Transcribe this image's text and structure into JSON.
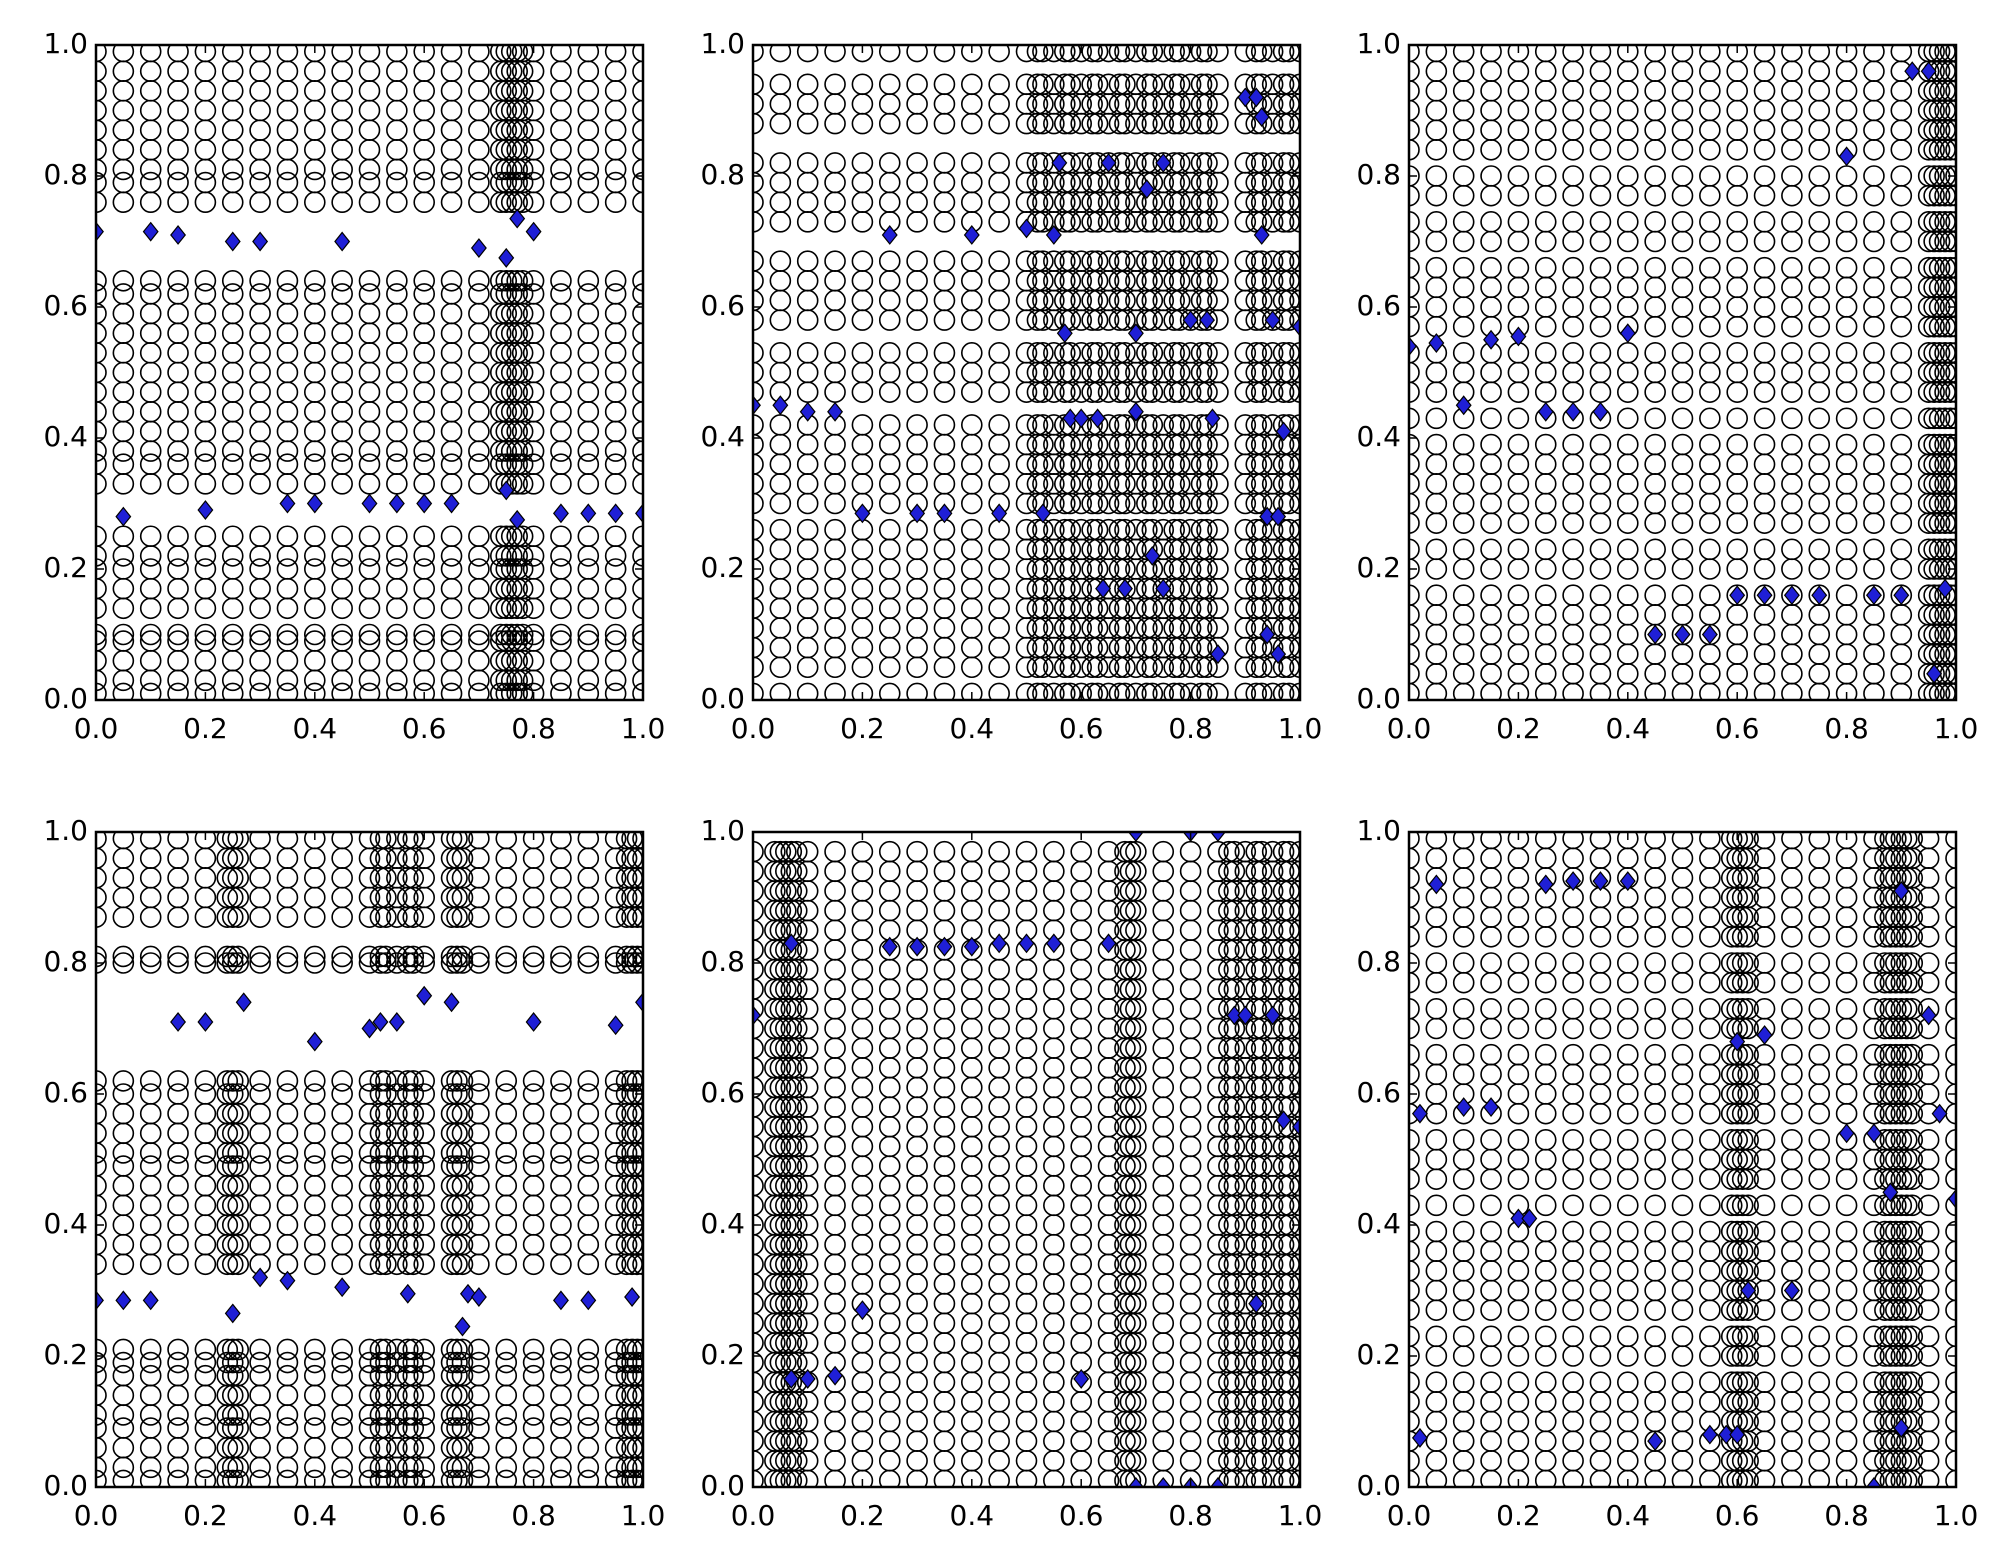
{
  "chart_data": [
    {
      "type": "scatter",
      "xlim": [
        0,
        1
      ],
      "ylim": [
        0,
        1
      ],
      "xticks": [
        {
          "value": 0,
          "label": "0.0"
        },
        0.2,
        0.4,
        0.6,
        0.8,
        {
          "value": 1,
          "label": "1.0"
        }
      ],
      "yticks": [
        {
          "value": 0,
          "label": "0.0"
        },
        0.2,
        0.4,
        0.6,
        0.8,
        {
          "value": 1,
          "label": "1.0"
        }
      ],
      "series": [
        {
          "marker": "circle",
          "color": "none",
          "edgecolor": "#000000",
          "grid_x": [
            0,
            0.05,
            0.1,
            0.15,
            0.2,
            0.25,
            0.3,
            0.35,
            0.4,
            0.45,
            0.5,
            0.55,
            0.6,
            0.65,
            0.7,
            0.75,
            0.8,
            0.85,
            0.9,
            0.95,
            1,
            0.74,
            0.76,
            0.77,
            0.78
          ],
          "grid_y": [
            0.01,
            0.03,
            0.06,
            0.09,
            0.1,
            0.14,
            0.17,
            0.2,
            0.22,
            0.25,
            0.33,
            0.36,
            0.38,
            0.41,
            0.44,
            0.47,
            0.5,
            0.53,
            0.56,
            0.59,
            0.62,
            0.64,
            0.76,
            0.79,
            0.81,
            0.84,
            0.87,
            0.9,
            0.93,
            0.96,
            0.99
          ]
        },
        {
          "marker": "diamond",
          "color": "#1f1fd6",
          "edgecolor": "#000000",
          "x": [
            0,
            0.1,
            0.15,
            0.25,
            0.3,
            0.45,
            0.7,
            0.75,
            0.77,
            0.8,
            0.05,
            0.2,
            0.35,
            0.4,
            0.5,
            0.55,
            0.6,
            0.65,
            0.75,
            0.77,
            0.85,
            0.9,
            0.95,
            1
          ],
          "y": [
            0.715,
            0.715,
            0.71,
            0.7,
            0.7,
            0.7,
            0.69,
            0.675,
            0.735,
            0.715,
            0.28,
            0.29,
            0.3,
            0.3,
            0.3,
            0.3,
            0.3,
            0.3,
            0.32,
            0.275,
            0.285,
            0.285,
            0.285,
            0.285
          ]
        }
      ]
    },
    {
      "type": "scatter",
      "xlim": [
        0,
        1
      ],
      "ylim": [
        0,
        1
      ],
      "xticks": [
        {
          "value": 0,
          "label": "0.0"
        },
        0.2,
        0.4,
        0.6,
        0.8,
        {
          "value": 1,
          "label": "1.0"
        }
      ],
      "yticks": [
        {
          "value": 0,
          "label": "0.0"
        },
        0.2,
        0.4,
        0.6,
        0.8,
        {
          "value": 1,
          "label": "1.0"
        }
      ],
      "series": [
        {
          "marker": "circle",
          "color": "none",
          "edgecolor": "#000000",
          "grid_x": [
            0,
            0.05,
            0.1,
            0.15,
            0.2,
            0.25,
            0.3,
            0.35,
            0.4,
            0.45,
            0.5,
            0.55,
            0.6,
            0.65,
            0.7,
            0.75,
            0.8,
            0.85,
            0.9,
            0.95,
            1,
            0.52,
            0.53,
            0.57,
            0.58,
            0.62,
            0.63,
            0.67,
            0.68,
            0.72,
            0.73,
            0.77,
            0.78,
            0.82,
            0.83,
            0.92,
            0.93,
            0.97,
            0.98
          ],
          "grid_y": [
            0.01,
            0.05,
            0.08,
            0.11,
            0.14,
            0.17,
            0.2,
            0.23,
            0.26,
            0.3,
            0.33,
            0.36,
            0.39,
            0.42,
            0.47,
            0.5,
            0.53,
            0.58,
            0.61,
            0.64,
            0.67,
            0.73,
            0.76,
            0.79,
            0.82,
            0.88,
            0.91,
            0.94,
            0.99
          ]
        },
        {
          "marker": "diamond",
          "color": "#1f1fd6",
          "edgecolor": "#000000",
          "x": [
            0,
            0.05,
            0.1,
            0.15,
            0.2,
            0.25,
            0.3,
            0.35,
            0.4,
            0.45,
            0.5,
            0.53,
            0.55,
            0.56,
            0.57,
            0.58,
            0.6,
            0.63,
            0.64,
            0.65,
            0.68,
            0.7,
            0.7,
            0.72,
            0.73,
            0.75,
            0.75,
            0.8,
            0.83,
            0.84,
            0.85,
            0.9,
            0.92,
            0.93,
            0.93,
            0.95,
            0.97,
            0.94,
            0.96,
            0.94,
            0.96,
            1
          ],
          "y": [
            0.45,
            0.45,
            0.44,
            0.44,
            0.285,
            0.71,
            0.285,
            0.285,
            0.71,
            0.285,
            0.72,
            0.285,
            0.71,
            0.82,
            0.56,
            0.43,
            0.43,
            0.43,
            0.17,
            0.82,
            0.17,
            0.44,
            0.56,
            0.78,
            0.22,
            0.82,
            0.17,
            0.58,
            0.58,
            0.43,
            0.07,
            0.92,
            0.92,
            0.89,
            0.71,
            0.58,
            0.41,
            0.28,
            0.28,
            0.1,
            0.07,
            0.57
          ]
        }
      ]
    },
    {
      "type": "scatter",
      "xlim": [
        0,
        1
      ],
      "ylim": [
        0,
        1
      ],
      "xticks": [
        {
          "value": 0,
          "label": "0.0"
        },
        0.2,
        0.4,
        0.6,
        0.8,
        {
          "value": 1,
          "label": "1.0"
        }
      ],
      "yticks": [
        {
          "value": 0,
          "label": "0.0"
        },
        0.2,
        0.4,
        0.6,
        0.8,
        {
          "value": 1,
          "label": "1.0"
        }
      ],
      "series": [
        {
          "marker": "circle",
          "color": "none",
          "edgecolor": "#000000",
          "grid_x": [
            0,
            0.05,
            0.1,
            0.15,
            0.2,
            0.25,
            0.3,
            0.35,
            0.4,
            0.45,
            0.5,
            0.55,
            0.6,
            0.65,
            0.7,
            0.75,
            0.8,
            0.85,
            0.9,
            0.95,
            1,
            0.96,
            0.97,
            0.98,
            0.99
          ],
          "grid_y": [
            0.01,
            0.04,
            0.07,
            0.1,
            0.13,
            0.16,
            0.2,
            0.23,
            0.27,
            0.3,
            0.33,
            0.36,
            0.39,
            0.43,
            0.47,
            0.5,
            0.53,
            0.57,
            0.6,
            0.63,
            0.66,
            0.7,
            0.73,
            0.77,
            0.8,
            0.84,
            0.87,
            0.9,
            0.93,
            0.96,
            0.99
          ]
        },
        {
          "marker": "diamond",
          "color": "#1f1fd6",
          "edgecolor": "#000000",
          "x": [
            0,
            0.05,
            0.1,
            0.15,
            0.2,
            0.25,
            0.3,
            0.35,
            0.4,
            0.45,
            0.5,
            0.55,
            0.6,
            0.65,
            0.7,
            0.75,
            0.8,
            0.85,
            0.9,
            0.92,
            0.95,
            0.98,
            0.96
          ],
          "y": [
            0.54,
            0.545,
            0.45,
            0.55,
            0.555,
            0.44,
            0.44,
            0.44,
            0.56,
            0.1,
            0.1,
            0.1,
            0.16,
            0.16,
            0.16,
            0.16,
            0.83,
            0.16,
            0.16,
            0.96,
            0.96,
            0.17,
            0.04
          ]
        }
      ]
    },
    {
      "type": "scatter",
      "xlim": [
        0,
        1
      ],
      "ylim": [
        0,
        1
      ],
      "xticks": [
        {
          "value": 0,
          "label": "0.0"
        },
        0.2,
        0.4,
        0.6,
        0.8,
        {
          "value": 1,
          "label": "1.0"
        }
      ],
      "yticks": [
        {
          "value": 0,
          "label": "0.0"
        },
        0.2,
        0.4,
        0.6,
        0.8,
        {
          "value": 1,
          "label": "1.0"
        }
      ],
      "series": [
        {
          "marker": "circle",
          "color": "none",
          "edgecolor": "#000000",
          "grid_x": [
            0,
            0.05,
            0.1,
            0.15,
            0.2,
            0.25,
            0.3,
            0.35,
            0.4,
            0.45,
            0.5,
            0.55,
            0.6,
            0.65,
            0.7,
            0.75,
            0.8,
            0.85,
            0.9,
            0.95,
            1,
            0.24,
            0.26,
            0.52,
            0.53,
            0.57,
            0.58,
            0.66,
            0.67,
            0.97,
            0.98,
            0.99
          ],
          "grid_y": [
            0.01,
            0.03,
            0.06,
            0.09,
            0.11,
            0.14,
            0.17,
            0.19,
            0.21,
            0.34,
            0.37,
            0.4,
            0.43,
            0.46,
            0.49,
            0.51,
            0.54,
            0.57,
            0.6,
            0.62,
            0.8,
            0.81,
            0.87,
            0.9,
            0.93,
            0.96,
            0.99
          ]
        },
        {
          "marker": "diamond",
          "color": "#1f1fd6",
          "edgecolor": "#000000",
          "x": [
            0,
            0.05,
            0.1,
            0.15,
            0.2,
            0.25,
            0.27,
            0.3,
            0.35,
            0.4,
            0.45,
            0.5,
            0.52,
            0.55,
            0.57,
            0.6,
            0.65,
            0.67,
            0.68,
            0.7,
            0.8,
            0.85,
            0.9,
            0.95,
            0.98,
            1
          ],
          "y": [
            0.285,
            0.285,
            0.285,
            0.71,
            0.71,
            0.265,
            0.74,
            0.32,
            0.315,
            0.68,
            0.305,
            0.7,
            0.71,
            0.71,
            0.295,
            0.75,
            0.74,
            0.245,
            0.295,
            0.29,
            0.71,
            0.285,
            0.285,
            0.705,
            0.29,
            0.74
          ]
        }
      ]
    },
    {
      "type": "scatter",
      "xlim": [
        0,
        1
      ],
      "ylim": [
        0,
        1
      ],
      "xticks": [
        {
          "value": 0,
          "label": "0.0"
        },
        0.2,
        0.4,
        0.6,
        0.8,
        {
          "value": 1,
          "label": "1.0"
        }
      ],
      "yticks": [
        {
          "value": 0,
          "label": "0.0"
        },
        0.2,
        0.4,
        0.6,
        0.8,
        {
          "value": 1,
          "label": "1.0"
        }
      ],
      "series": [
        {
          "marker": "circle",
          "color": "none",
          "edgecolor": "#000000",
          "grid_x": [
            0,
            0.05,
            0.1,
            0.15,
            0.2,
            0.25,
            0.3,
            0.35,
            0.4,
            0.45,
            0.5,
            0.55,
            0.6,
            0.65,
            0.7,
            0.75,
            0.8,
            0.85,
            0.9,
            0.95,
            1,
            0.04,
            0.06,
            0.07,
            0.08,
            0.68,
            0.69,
            0.87,
            0.88,
            0.92,
            0.93,
            0.97,
            0.98
          ],
          "grid_y": [
            0.01,
            0.04,
            0.07,
            0.1,
            0.13,
            0.16,
            0.19,
            0.22,
            0.25,
            0.28,
            0.31,
            0.34,
            0.37,
            0.4,
            0.43,
            0.46,
            0.49,
            0.52,
            0.55,
            0.58,
            0.61,
            0.64,
            0.67,
            0.7,
            0.73,
            0.76,
            0.79,
            0.82,
            0.85,
            0.88,
            0.91,
            0.94,
            0.97
          ]
        },
        {
          "marker": "diamond",
          "color": "#1f1fd6",
          "edgecolor": "#000000",
          "x": [
            0,
            0.07,
            0.07,
            0.1,
            0.15,
            0.2,
            0.25,
            0.3,
            0.35,
            0.4,
            0.45,
            0.5,
            0.55,
            0.6,
            0.65,
            0.7,
            0.8,
            0.85,
            0.88,
            0.9,
            0.95,
            0.92,
            0.97,
            1,
            0.7,
            0.75,
            0.8,
            0.85
          ],
          "y": [
            0.72,
            0.83,
            0.165,
            0.165,
            0.17,
            0.27,
            0.825,
            0.825,
            0.825,
            0.825,
            0.83,
            0.83,
            0.83,
            0.165,
            0.83,
            1,
            1,
            1,
            0.72,
            0.72,
            0.72,
            0.28,
            0.56,
            0.55,
            0,
            0,
            0,
            0
          ]
        }
      ]
    },
    {
      "type": "scatter",
      "xlim": [
        0,
        1
      ],
      "ylim": [
        0,
        1
      ],
      "xticks": [
        {
          "value": 0,
          "label": "0.0"
        },
        0.2,
        0.4,
        0.6,
        0.8,
        {
          "value": 1,
          "label": "1.0"
        }
      ],
      "yticks": [
        {
          "value": 0,
          "label": "0.0"
        },
        0.2,
        0.4,
        0.6,
        0.8,
        {
          "value": 1,
          "label": "1.0"
        }
      ],
      "series": [
        {
          "marker": "circle",
          "color": "none",
          "edgecolor": "#000000",
          "grid_x": [
            0,
            0.05,
            0.1,
            0.15,
            0.2,
            0.25,
            0.3,
            0.35,
            0.4,
            0.45,
            0.5,
            0.55,
            0.6,
            0.65,
            0.7,
            0.75,
            0.8,
            0.85,
            0.9,
            0.95,
            1,
            0.59,
            0.61,
            0.62,
            0.87,
            0.88,
            0.89,
            0.91,
            0.92
          ],
          "grid_y": [
            0.01,
            0.04,
            0.07,
            0.1,
            0.13,
            0.16,
            0.2,
            0.23,
            0.27,
            0.3,
            0.33,
            0.36,
            0.39,
            0.43,
            0.47,
            0.5,
            0.53,
            0.57,
            0.6,
            0.63,
            0.66,
            0.7,
            0.73,
            0.77,
            0.8,
            0.84,
            0.87,
            0.9,
            0.93,
            0.96,
            0.99
          ]
        },
        {
          "marker": "diamond",
          "color": "#1f1fd6",
          "edgecolor": "#000000",
          "x": [
            0.02,
            0.05,
            0.1,
            0.15,
            0.2,
            0.22,
            0.25,
            0.3,
            0.35,
            0.4,
            0.45,
            0.55,
            0.58,
            0.6,
            0.6,
            0.62,
            0.65,
            0.7,
            0.8,
            0.85,
            0.88,
            0.9,
            0.9,
            0.95,
            0.97,
            1,
            0.02,
            0.85
          ],
          "y": [
            0.57,
            0.92,
            0.58,
            0.58,
            0.41,
            0.41,
            0.92,
            0.925,
            0.925,
            0.925,
            0.07,
            0.08,
            0.08,
            0.08,
            0.68,
            0.3,
            0.69,
            0.3,
            0.54,
            0.54,
            0.45,
            0.91,
            0.09,
            0.72,
            0.57,
            0.44,
            0.075,
            0
          ]
        }
      ]
    }
  ]
}
